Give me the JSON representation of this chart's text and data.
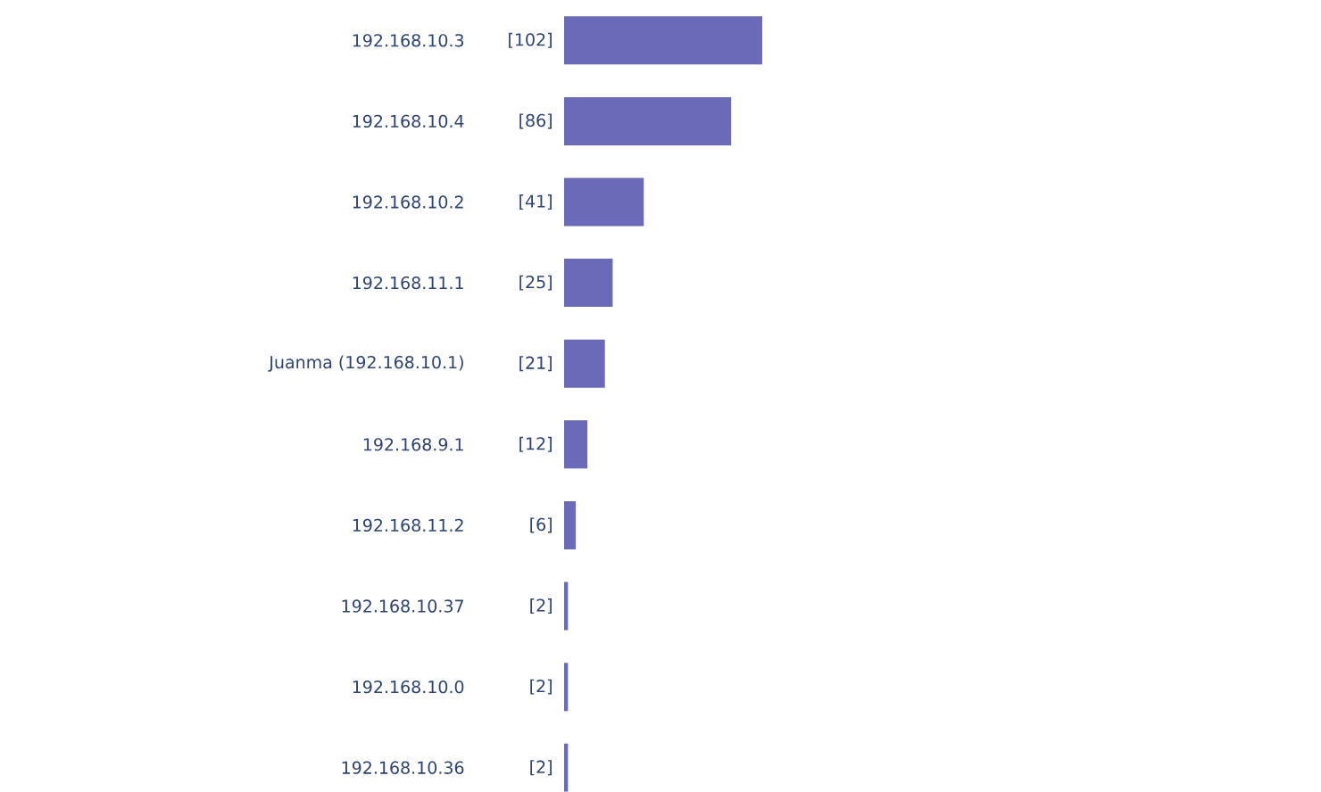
{
  "chart_data": {
    "type": "bar",
    "orientation": "horizontal",
    "categories": [
      "192.168.10.3",
      "192.168.10.4",
      "192.168.10.2",
      "192.168.11.1",
      "Juanma (192.168.10.1)",
      "192.168.9.1",
      "192.168.11.2",
      "192.168.10.37",
      "192.168.10.0",
      "192.168.10.36"
    ],
    "values": [
      102,
      86,
      41,
      25,
      21,
      12,
      6,
      2,
      2,
      2
    ],
    "value_labels": [
      "[102]",
      "[86]",
      "[41]",
      "[25]",
      "[21]",
      "[12]",
      "[6]",
      "[2]",
      "[2]",
      "[2]"
    ],
    "color": "#6a6ab8",
    "tick_labels": "y"
  }
}
